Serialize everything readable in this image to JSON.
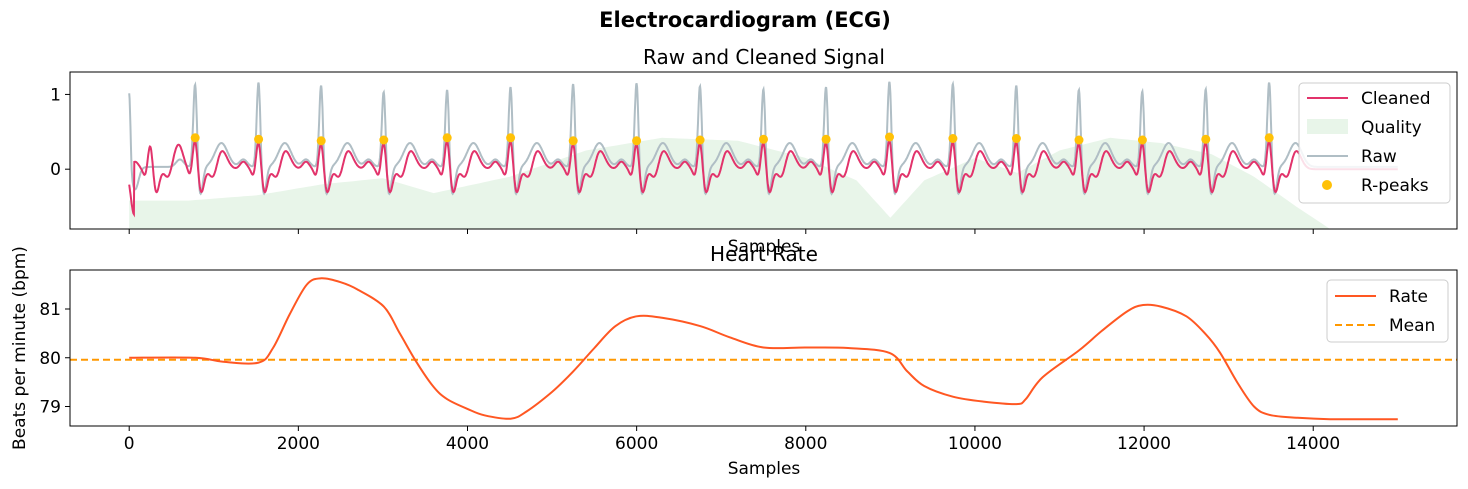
{
  "figure_title": "Electrocardiogram (ECG)",
  "colors": {
    "cleaned": "#E2336B",
    "raw": "#B0BEC5",
    "quality": "#E8F5E9",
    "rpeaks": "#FFC107",
    "rate": "#FF5722",
    "mean": "#FF9800"
  },
  "chart_data": [
    {
      "type": "line",
      "title": "Raw and Cleaned Signal",
      "xlabel": "Samples",
      "ylabel": "",
      "xlim": [
        -700,
        15700
      ],
      "ylim": [
        -0.8,
        1.3
      ],
      "yticks": [
        1,
        0
      ],
      "legend_position": "upper-right",
      "legend": [
        "Cleaned",
        "Quality",
        "Raw",
        "R-peaks"
      ],
      "r_peaks": {
        "x": [
          780,
          1530,
          2270,
          3010,
          3760,
          4510,
          5250,
          6000,
          6750,
          7500,
          8240,
          8990,
          9740,
          10490,
          11230,
          11980,
          12730,
          13480
        ],
        "y": [
          0.42,
          0.4,
          0.38,
          0.39,
          0.42,
          0.42,
          0.38,
          0.38,
          0.39,
          0.4,
          0.4,
          0.43,
          0.41,
          0.41,
          0.39,
          0.39,
          0.4,
          0.42
        ]
      },
      "raw_peak_heights": [
        1.15,
        1.18,
        1.14,
        1.05,
        1.08,
        1.12,
        1.16,
        1.17,
        1.13,
        1.09,
        1.12,
        1.19,
        1.16,
        1.14,
        1.08,
        1.06,
        1.09,
        1.18
      ],
      "quality": {
        "x": [
          0,
          700,
          1500,
          2300,
          3000,
          3600,
          4500,
          5400,
          6300,
          7200,
          8000,
          8600,
          9000,
          9400,
          10000,
          10500,
          11000,
          11600,
          12200,
          12800,
          13300,
          13800,
          14200,
          15000
        ],
        "y": [
          -0.42,
          -0.42,
          -0.35,
          -0.2,
          -0.12,
          -0.32,
          -0.1,
          0.25,
          0.42,
          0.38,
          0.15,
          -0.15,
          -0.65,
          -0.15,
          0.15,
          -0.05,
          0.25,
          0.42,
          0.35,
          0.2,
          -0.1,
          -0.5,
          -0.8,
          -0.8
        ]
      }
    },
    {
      "type": "line",
      "title": "Heart Rate",
      "xlabel": "Samples",
      "ylabel": "Beats per minute (bpm)",
      "xlim": [
        -700,
        15700
      ],
      "ylim": [
        78.6,
        81.8
      ],
      "xticks": [
        0,
        2000,
        4000,
        6000,
        8000,
        10000,
        12000,
        14000
      ],
      "xtick_labels": [
        "0",
        "2000",
        "4000",
        "6000",
        "8000",
        "10000",
        "12000",
        "14000"
      ],
      "yticks": [
        81,
        80,
        79
      ],
      "legend_position": "upper-right",
      "legend": [
        "Rate",
        "Mean"
      ],
      "rate": {
        "x": [
          0,
          780,
          1100,
          1530,
          1700,
          1900,
          2100,
          2270,
          2500,
          2700,
          3010,
          3200,
          3400,
          3600,
          3760,
          4000,
          4200,
          4510,
          4700,
          5000,
          5250,
          5500,
          5750,
          6000,
          6300,
          6750,
          7100,
          7500,
          8000,
          8500,
          8990,
          9200,
          9400,
          9740,
          10100,
          10490,
          10600,
          10800,
          11230,
          11500,
          11800,
          11980,
          12200,
          12500,
          12730,
          12900,
          13100,
          13300,
          13480,
          13800,
          14200,
          15000
        ],
        "y": [
          80.0,
          80.0,
          79.92,
          79.9,
          80.2,
          80.9,
          81.5,
          81.63,
          81.55,
          81.4,
          81.05,
          80.5,
          79.9,
          79.4,
          79.15,
          78.95,
          78.82,
          78.75,
          78.9,
          79.3,
          79.72,
          80.2,
          80.65,
          80.85,
          80.82,
          80.65,
          80.42,
          80.21,
          80.21,
          80.2,
          80.1,
          79.72,
          79.42,
          79.2,
          79.1,
          79.05,
          79.15,
          79.6,
          80.15,
          80.55,
          80.95,
          81.08,
          81.05,
          80.85,
          80.48,
          80.1,
          79.5,
          79.0,
          78.83,
          78.77,
          78.74,
          78.74
        ]
      },
      "mean": 79.96
    }
  ]
}
